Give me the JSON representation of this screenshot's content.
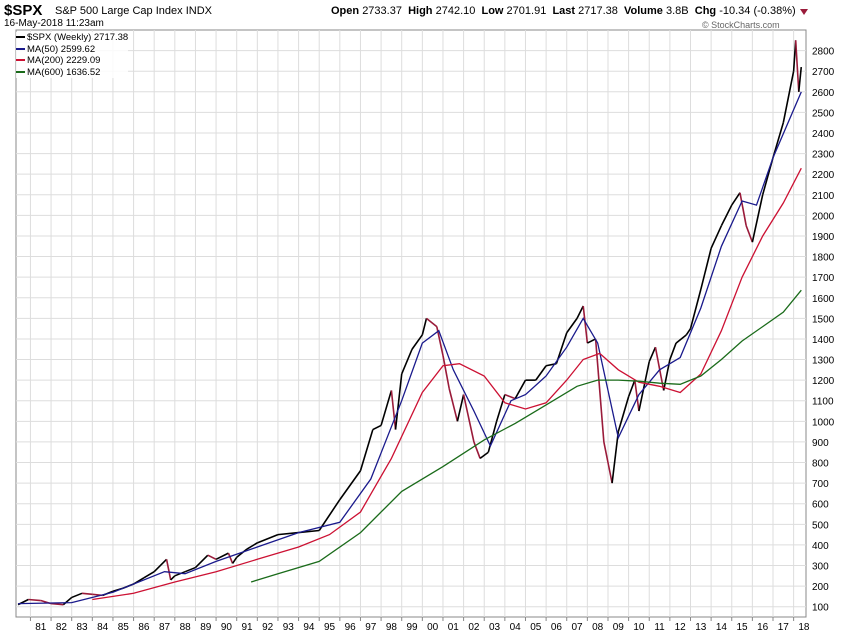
{
  "header": {
    "symbol": "$SPX",
    "name": "S&P 500 Large Cap Index",
    "exchange": "INDX",
    "datetime": "16-May-2018 11:23am",
    "open_label": "Open",
    "open": "2733.37",
    "high_label": "High",
    "high": "2742.10",
    "low_label": "Low",
    "low": "2701.91",
    "last_label": "Last",
    "last": "2717.38",
    "volume_label": "Volume",
    "volume": "3.8B",
    "chg_label": "Chg",
    "chg": "-10.34 (-0.38%)",
    "brand": "© StockCharts.com"
  },
  "legend": [
    {
      "label": "$SPX (Weekly) 2717.38",
      "color": "#000000"
    },
    {
      "label": "MA(50) 2599.62",
      "color": "#1a1a8c"
    },
    {
      "label": "MA(200) 2229.09",
      "color": "#cc1133"
    },
    {
      "label": "MA(600) 1636.52",
      "color": "#1a6b1a"
    }
  ],
  "colors": {
    "price_down": "#9a1b3a",
    "price_up": "#000000",
    "grid": "#dddddd",
    "ma50": "#1a1a8c",
    "ma200": "#cc1133",
    "ma600": "#1a6b1a"
  },
  "chart_data": {
    "type": "line",
    "title": "$SPX S&P 500 Large Cap Index (Weekly)",
    "ylim": [
      50,
      2900
    ],
    "yticks": [
      100,
      200,
      300,
      400,
      500,
      600,
      700,
      800,
      900,
      1000,
      1100,
      1200,
      1300,
      1400,
      1500,
      1600,
      1700,
      1800,
      1900,
      2000,
      2100,
      2200,
      2300,
      2400,
      2500,
      2600,
      2700,
      2800
    ],
    "xlim": [
      1980.3,
      2018.6
    ],
    "xticks": [
      "81",
      "82",
      "83",
      "84",
      "85",
      "86",
      "87",
      "88",
      "89",
      "90",
      "91",
      "92",
      "93",
      "94",
      "95",
      "96",
      "97",
      "98",
      "99",
      "00",
      "01",
      "02",
      "03",
      "04",
      "05",
      "06",
      "07",
      "08",
      "09",
      "10",
      "11",
      "12",
      "13",
      "14",
      "15",
      "16",
      "17",
      "18"
    ],
    "xtick_years": [
      1981,
      1982,
      1983,
      1984,
      1985,
      1986,
      1987,
      1988,
      1989,
      1990,
      1991,
      1992,
      1993,
      1994,
      1995,
      1996,
      1997,
      1998,
      1999,
      2000,
      2001,
      2002,
      2003,
      2004,
      2005,
      2006,
      2007,
      2008,
      2009,
      2010,
      2011,
      2012,
      2013,
      2014,
      2015,
      2016,
      2017,
      2018
    ],
    "series": [
      {
        "name": "$SPX (Weekly)",
        "x": [
          1980.4,
          1980.9,
          1981.5,
          1982.0,
          1982.6,
          1983.0,
          1983.5,
          1984.0,
          1984.5,
          1985.0,
          1985.5,
          1986.0,
          1986.5,
          1987.0,
          1987.6,
          1987.8,
          1988.0,
          1988.5,
          1989.0,
          1989.6,
          1990.0,
          1990.6,
          1990.8,
          1991.0,
          1991.5,
          1992.0,
          1993.0,
          1994.0,
          1995.0,
          1996.0,
          1997.0,
          1997.6,
          1998.0,
          1998.5,
          1998.7,
          1999.0,
          1999.5,
          2000.0,
          2000.2,
          2000.7,
          2001.0,
          2001.3,
          2001.7,
          2002.0,
          2002.5,
          2002.8,
          2003.2,
          2003.6,
          2004.0,
          2004.5,
          2005.0,
          2005.5,
          2006.0,
          2006.5,
          2007.0,
          2007.5,
          2007.8,
          2008.0,
          2008.4,
          2008.8,
          2009.0,
          2009.2,
          2009.5,
          2010.0,
          2010.3,
          2010.5,
          2011.0,
          2011.3,
          2011.7,
          2012.0,
          2012.3,
          2012.8,
          2013.0,
          2013.5,
          2014.0,
          2014.5,
          2015.0,
          2015.4,
          2015.7,
          2016.0,
          2016.5,
          2017.0,
          2017.5,
          2018.0,
          2018.1,
          2018.25,
          2018.37
        ],
        "values": [
          110,
          135,
          130,
          115,
          110,
          145,
          165,
          160,
          155,
          175,
          190,
          210,
          240,
          270,
          330,
          230,
          250,
          270,
          290,
          350,
          330,
          360,
          310,
          340,
          380,
          410,
          450,
          460,
          470,
          620,
          760,
          960,
          980,
          1150,
          960,
          1230,
          1350,
          1420,
          1500,
          1460,
          1320,
          1160,
          1000,
          1130,
          900,
          820,
          850,
          1000,
          1130,
          1110,
          1200,
          1200,
          1270,
          1280,
          1430,
          1500,
          1560,
          1380,
          1400,
          900,
          800,
          700,
          950,
          1120,
          1200,
          1050,
          1290,
          1360,
          1150,
          1300,
          1380,
          1420,
          1450,
          1640,
          1840,
          1950,
          2050,
          2110,
          1950,
          1870,
          2100,
          2280,
          2450,
          2700,
          2850,
          2600,
          2720
        ]
      },
      {
        "name": "MA(50)",
        "x": [
          1980.4,
          1983.0,
          1985.0,
          1987.5,
          1988.5,
          1990.0,
          1992.0,
          1994.0,
          1996.0,
          1997.5,
          1999.0,
          2000.0,
          2000.8,
          2001.5,
          2002.5,
          2003.3,
          2004.3,
          2005.0,
          2006.0,
          2007.0,
          2007.8,
          2008.5,
          2009.5,
          2010.5,
          2011.5,
          2012.5,
          2013.5,
          2014.5,
          2015.5,
          2016.2,
          2017.0,
          2018.37
        ],
        "values": [
          115,
          120,
          170,
          270,
          260,
          320,
          390,
          460,
          510,
          720,
          1100,
          1380,
          1440,
          1250,
          1050,
          880,
          1100,
          1130,
          1220,
          1360,
          1500,
          1380,
          920,
          1130,
          1250,
          1310,
          1550,
          1850,
          2070,
          2050,
          2280,
          2599.62
        ]
      },
      {
        "name": "MA(200)",
        "x": [
          1984.0,
          1986.0,
          1988.0,
          1990.0,
          1992.0,
          1994.0,
          1995.5,
          1997.0,
          1998.5,
          2000.0,
          2001.0,
          2001.8,
          2003.0,
          2004.0,
          2005.0,
          2006.0,
          2007.0,
          2007.8,
          2008.6,
          2009.5,
          2010.5,
          2011.5,
          2012.5,
          2013.5,
          2014.5,
          2015.5,
          2016.5,
          2017.5,
          2018.37
        ],
        "values": [
          135,
          165,
          220,
          270,
          330,
          390,
          450,
          560,
          820,
          1140,
          1270,
          1280,
          1220,
          1090,
          1060,
          1090,
          1200,
          1300,
          1330,
          1250,
          1190,
          1170,
          1140,
          1230,
          1440,
          1700,
          1900,
          2060,
          2229.09
        ]
      },
      {
        "name": "MA(600)",
        "x": [
          1991.7,
          1993.0,
          1995.0,
          1997.0,
          1999.0,
          2001.0,
          2003.0,
          2004.5,
          2006.0,
          2007.5,
          2008.5,
          2009.5,
          2010.5,
          2011.5,
          2012.5,
          2013.5,
          2014.5,
          2015.5,
          2016.5,
          2017.5,
          2018.37
        ],
        "values": [
          220,
          260,
          320,
          460,
          660,
          780,
          910,
          990,
          1080,
          1170,
          1200,
          1200,
          1195,
          1185,
          1180,
          1220,
          1300,
          1390,
          1460,
          1530,
          1636.52
        ]
      }
    ]
  }
}
